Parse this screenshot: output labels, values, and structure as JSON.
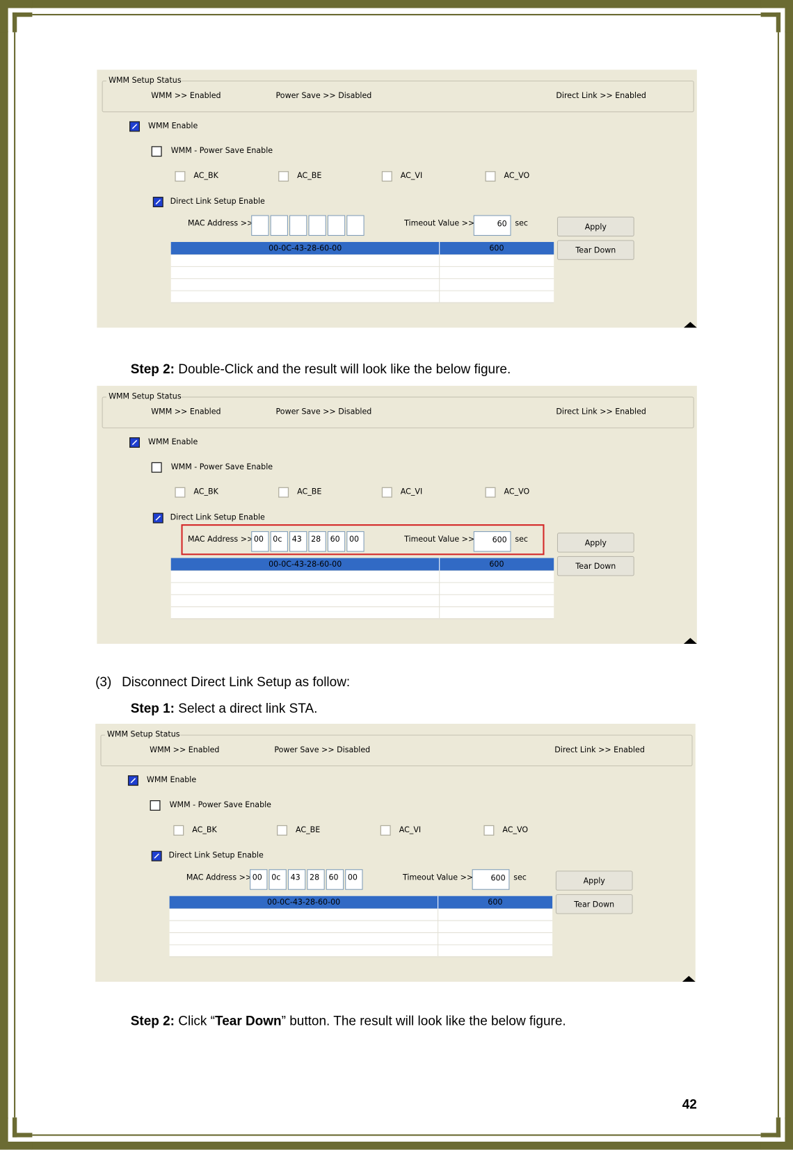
{
  "panels": [
    {
      "status_title": "WMM Setup Status",
      "status": [
        "WMM >> Enabled",
        "Power Save >> Disabled",
        "Direct Link >> Enabled"
      ],
      "wmm_enable": "WMM Enable",
      "power_save": "WMM - Power Save Enable",
      "ac": [
        "AC_BK",
        "AC_BE",
        "AC_VI",
        "AC_VO"
      ],
      "dls": "Direct Link Setup Enable",
      "mac_label": "MAC Address >>",
      "mac": [],
      "timeout_label": "Timeout Value >>",
      "timeout": "60",
      "sec": "sec",
      "buttons": [
        "Apply",
        "Tear Down"
      ],
      "table": [
        [
          "00-0C-43-28-60-00",
          "600"
        ]
      ]
    },
    {
      "status_title": "WMM Setup Status",
      "status": [
        "WMM >> Enabled",
        "Power Save >> Disabled",
        "Direct Link >> Enabled"
      ],
      "wmm_enable": "WMM Enable",
      "power_save": "WMM - Power Save Enable",
      "ac": [
        "AC_BK",
        "AC_BE",
        "AC_VI",
        "AC_VO"
      ],
      "dls": "Direct Link Setup Enable",
      "mac_label": "MAC Address >>",
      "mac": [
        "00",
        "0c",
        "43",
        "28",
        "60",
        "00"
      ],
      "timeout_label": "Timeout Value >>",
      "timeout": "600",
      "sec": "sec",
      "buttons": [
        "Apply",
        "Tear Down"
      ],
      "table": [
        [
          "00-0C-43-28-60-00",
          "600"
        ]
      ],
      "highlight": true
    },
    {
      "status_title": "WMM Setup Status",
      "status": [
        "WMM >> Enabled",
        "Power Save >> Disabled",
        "Direct Link >> Enabled"
      ],
      "wmm_enable": "WMM Enable",
      "power_save": "WMM - Power Save Enable",
      "ac": [
        "AC_BK",
        "AC_BE",
        "AC_VI",
        "AC_VO"
      ],
      "dls": "Direct Link Setup Enable",
      "mac_label": "MAC Address >>",
      "mac": [
        "00",
        "0c",
        "43",
        "28",
        "60",
        "00"
      ],
      "timeout_label": "Timeout Value >>",
      "timeout": "600",
      "sec": "sec",
      "buttons": [
        "Apply",
        "Tear Down"
      ],
      "table": [
        [
          "00-0C-43-28-60-00",
          "600"
        ]
      ]
    }
  ],
  "step_a": {
    "label": "Step 2:",
    "text": " Double-Click and the result will look like the below figure."
  },
  "section": {
    "number": "(3)",
    "text": "Disconnect Direct Link Setup as follow:"
  },
  "step_b": {
    "label": "Step 1:",
    "text": " Select a direct link STA."
  },
  "step_c": {
    "label": "Step 2:",
    "pre": " Click “",
    "bold": "Tear Down",
    "post": "” button. The result will look like the below figure."
  },
  "page_number": "42"
}
